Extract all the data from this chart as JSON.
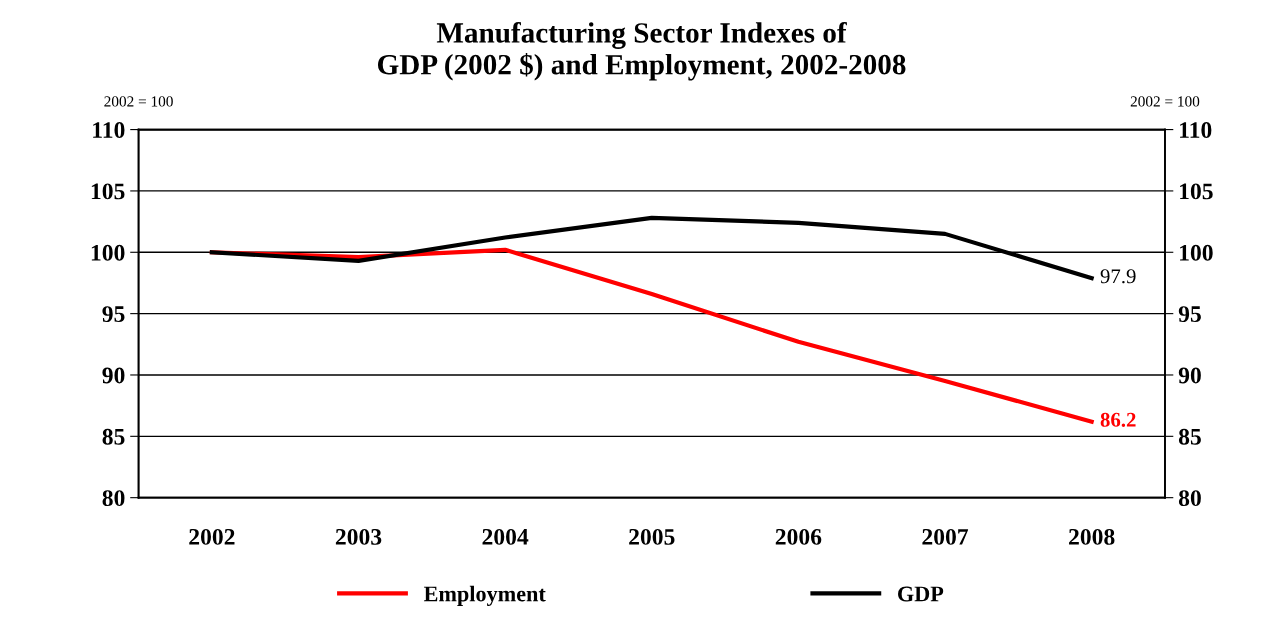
{
  "chart_data": {
    "type": "line",
    "title": "Manufacturing Sector Indexes of\nGDP (2002 $) and Employment, 2002-2008",
    "ylabel": "2002 = 100",
    "y2label": "2002 = 100",
    "categories": [
      "2002",
      "2003",
      "2004",
      "2005",
      "2006",
      "2007",
      "2008"
    ],
    "series": [
      {
        "name": "Employment",
        "color": "#ff0000",
        "values": [
          100,
          99.6,
          100.2,
          96.6,
          92.7,
          89.5,
          86.2
        ],
        "value_labels": [
          null,
          null,
          null,
          null,
          null,
          null,
          "86.2"
        ]
      },
      {
        "name": "GDP",
        "color": "#000000",
        "values": [
          100,
          99.3,
          101.2,
          102.8,
          102.4,
          101.5,
          97.9
        ],
        "value_labels": [
          null,
          null,
          null,
          null,
          null,
          null,
          "97.9"
        ]
      }
    ],
    "ylim": [
      80,
      110
    ],
    "yticks": [
      80,
      85,
      90,
      95,
      100,
      105,
      110
    ],
    "y2lim": [
      80,
      110
    ],
    "y2ticks": [
      80,
      85,
      90,
      95,
      100,
      105,
      110
    ],
    "grid": "y",
    "legend": "bottom",
    "marker": "none",
    "line_style": "solid"
  }
}
